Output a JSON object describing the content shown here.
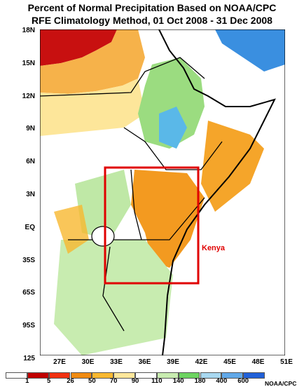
{
  "title_line1": "Percent of Normal Precipitation Based on NOAA/CPC",
  "title_line2": "RFE Climatology Method, 01 Oct 2008 - 31 Dec 2008",
  "lat_labels": [
    "18N",
    "15N",
    "12N",
    "9N",
    "6N",
    "3N",
    "EQ",
    "35S",
    "65S",
    "95S",
    "125"
  ],
  "lon_labels": [
    "27E",
    "30E",
    "33E",
    "36E",
    "39E",
    "42E",
    "45E",
    "48E",
    "51E"
  ],
  "highlight_label": "Kenya",
  "legend": {
    "labels": [
      "1",
      "5",
      "26",
      "50",
      "70",
      "90",
      "110",
      "140",
      "180",
      "400",
      "600"
    ],
    "colors": [
      "#ffffff",
      "#c00000",
      "#f03010",
      "#f08a10",
      "#f8b830",
      "#fde69a",
      "#ffffff",
      "#c8ecb0",
      "#6cd460",
      "#a8d8f0",
      "#60a8e8",
      "#2060d8"
    ]
  },
  "credit": "NOAA/CPC",
  "colors": {
    "highlight": "#e00000"
  }
}
